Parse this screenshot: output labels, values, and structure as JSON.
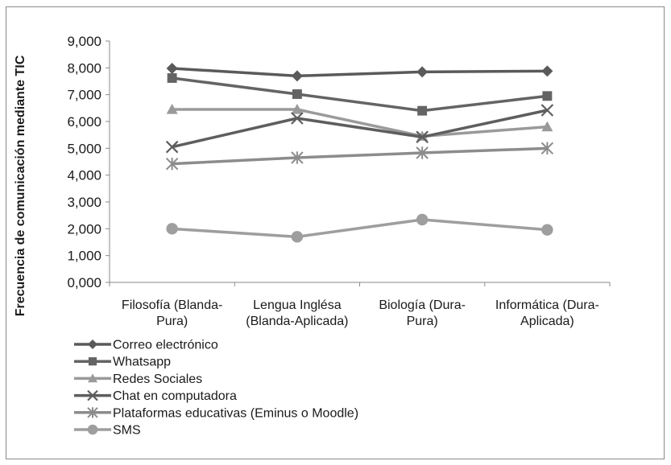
{
  "chart_data": {
    "type": "line",
    "title": "",
    "xlabel": "",
    "ylabel": "Frecuencia de comunicación mediante TIC",
    "ylim": [
      0,
      9000
    ],
    "ytick_step": 1000,
    "ytick_labels": [
      "0,000",
      "1,000",
      "2,000",
      "3,000",
      "4,000",
      "5,000",
      "6,000",
      "7,000",
      "8,000",
      "9,000"
    ],
    "grid": false,
    "legend_position": "bottom-left",
    "categories": [
      [
        "Filosofía (Blanda-",
        "Pura)"
      ],
      [
        "Lengua Inglésa",
        "(Blanda-Aplicada)"
      ],
      [
        "Biología (Dura-",
        "Pura)"
      ],
      [
        "Informática (Dura-",
        "Aplicada)"
      ]
    ],
    "series": [
      {
        "name": "Correo electrónico",
        "marker": "diamond",
        "color": "#5a5a5a",
        "values": [
          7980,
          7700,
          7850,
          7880
        ]
      },
      {
        "name": "Whatsapp",
        "marker": "square",
        "color": "#646464",
        "values": [
          7620,
          7020,
          6400,
          6950
        ]
      },
      {
        "name": "Redes Sociales",
        "marker": "triangle",
        "color": "#9a9a9a",
        "values": [
          6450,
          6450,
          5450,
          5800
        ]
      },
      {
        "name": "Chat en computadora",
        "marker": "x",
        "color": "#5e5e5e",
        "values": [
          5050,
          6120,
          5420,
          6420
        ]
      },
      {
        "name": "Plataformas educativas (Eminus o Moodle)",
        "marker": "star",
        "color": "#8c8c8c",
        "values": [
          4420,
          4650,
          4830,
          5000
        ]
      },
      {
        "name": "SMS",
        "marker": "circle",
        "color": "#9e9e9e",
        "values": [
          2000,
          1700,
          2340,
          1960
        ]
      }
    ]
  }
}
